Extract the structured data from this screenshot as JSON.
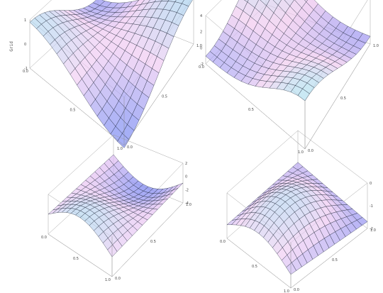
{
  "chart_data": [
    {
      "type": "surface",
      "ticks": {
        "x": [
          "0.0",
          "0.5",
          "1.0"
        ],
        "y": [
          "0.0",
          "0.5",
          "1.0"
        ],
        "z": [
          "-1",
          "0",
          "1"
        ]
      },
      "zlabel": "Grid",
      "zlim": [
        -1,
        1
      ],
      "grid": true,
      "colors": {
        "low": "#6f7ef0",
        "mid": "#f0c8f2",
        "high": "#a6d4ee"
      },
      "surface": {
        "kind": "saddle",
        "min_x": 0,
        "max_x": 1,
        "min_y": 0,
        "max_y": 1,
        "n": 14
      }
    },
    {
      "type": "surface",
      "ticks": {
        "x": [
          "0.0",
          "0.5",
          "1.0"
        ],
        "y": [
          "0.0",
          "0.5",
          "1.0"
        ],
        "z": [
          "-2",
          "0",
          "2",
          "4"
        ]
      },
      "zlim": [
        -2,
        4
      ],
      "grid": true,
      "colors": {
        "low": "#7b84f2",
        "mid": "#f2c7ee",
        "high": "#a8dcee"
      },
      "surface": {
        "kind": "twisted",
        "n": 14
      }
    },
    {
      "type": "surface",
      "ticks": {
        "x": [
          "0.0",
          "0.5",
          "1.0"
        ],
        "y": [
          "0.0",
          "0.5",
          "1.0"
        ],
        "z": [
          "-4",
          "-2",
          "0",
          "2"
        ]
      },
      "zlim": [
        -4,
        2
      ],
      "grid": true,
      "colors": {
        "low": "#6f7ef0",
        "mid": "#e9c3f2",
        "high": "#a6d4ee"
      },
      "surface": {
        "kind": "wave",
        "n": 14
      }
    },
    {
      "type": "surface",
      "ticks": {
        "x": [
          "0.0",
          "0.5",
          "1.0"
        ],
        "y": [
          "0.0",
          "0.5",
          "1.0"
        ],
        "z": [
          "-2",
          "-1",
          "0"
        ]
      },
      "zlim": [
        -2,
        0
      ],
      "grid": true,
      "colors": {
        "low": "#6f7ef0",
        "mid": "#f0c8f2",
        "high": "#a6d4ee"
      },
      "surface": {
        "kind": "bump",
        "n": 14
      }
    }
  ]
}
